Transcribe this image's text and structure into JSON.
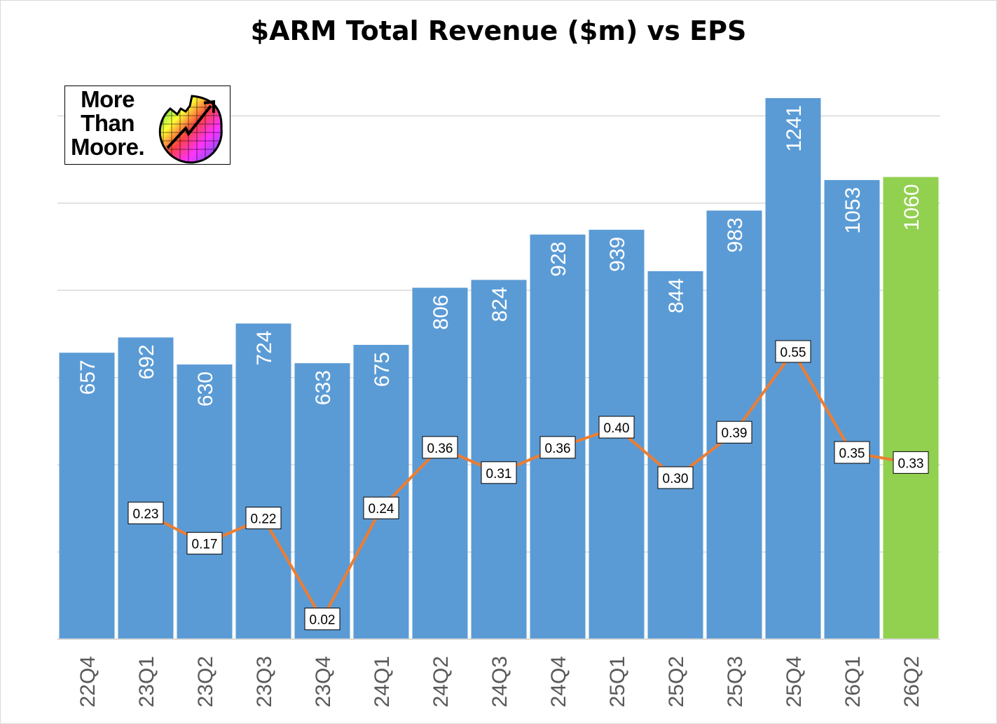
{
  "title": "$ARM Total Revenue ($m) vs EPS",
  "logo_text": [
    "More",
    "Than",
    "Moore."
  ],
  "chart_data": {
    "type": "bar",
    "title": "$ARM Total Revenue ($m) vs EPS",
    "xlabel": "",
    "ylabel": "",
    "ylim": [
      0,
      1400
    ],
    "grid": true,
    "categories": [
      "22Q4",
      "23Q1",
      "23Q2",
      "23Q3",
      "23Q4",
      "24Q1",
      "24Q2",
      "24Q3",
      "24Q4",
      "25Q1",
      "25Q2",
      "25Q3",
      "25Q4",
      "26Q1",
      "26Q2"
    ],
    "series": [
      {
        "name": "Total Revenue ($m)",
        "type": "bar",
        "values": [
          657,
          692,
          630,
          724,
          633,
          675,
          806,
          824,
          928,
          939,
          844,
          983,
          1241,
          1053,
          1060
        ],
        "color": "#5b9bd5",
        "highlight_last_color": "#92d050"
      },
      {
        "name": "EPS",
        "type": "line",
        "axis": "secondary",
        "values": [
          null,
          0.23,
          0.17,
          0.22,
          0.02,
          0.24,
          0.36,
          0.31,
          0.36,
          0.4,
          0.3,
          0.39,
          0.55,
          0.35,
          0.33
        ],
        "color": "#ed7d31"
      }
    ]
  }
}
